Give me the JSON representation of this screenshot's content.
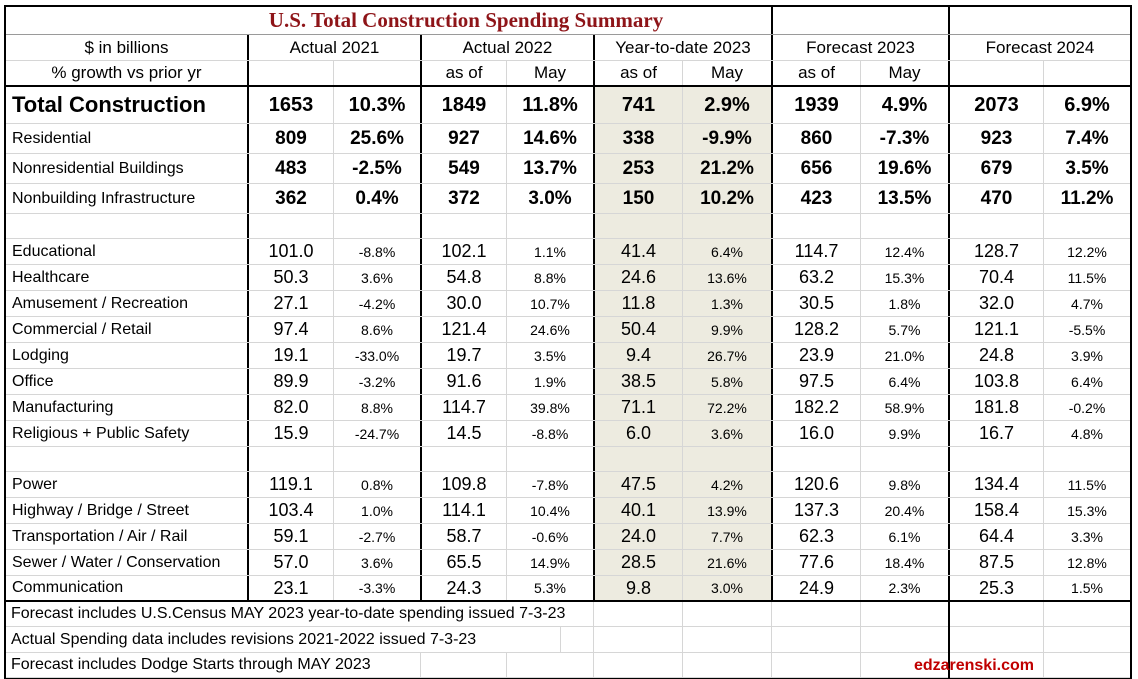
{
  "title": "U.S. Total Construction Spending Summary",
  "watermark": "edzarenski.com",
  "header": {
    "col_label_1": "$ in billions",
    "col_label_2": "% growth vs prior yr",
    "groups": [
      {
        "label": "Actual 2021",
        "sub1": "",
        "sub2": ""
      },
      {
        "label": "Actual 2022",
        "sub1": "as of",
        "sub2": "May"
      },
      {
        "label": "Year-to-date 2023",
        "sub1": "as of",
        "sub2": "May"
      },
      {
        "label": "Forecast 2023",
        "sub1": "as of",
        "sub2": "May"
      },
      {
        "label": "Forecast 2024",
        "sub1": "",
        "sub2": ""
      }
    ]
  },
  "rows": [
    {
      "type": "total",
      "label": "Total Construction",
      "values": [
        "1653",
        "10.3%",
        "1849",
        "11.8%",
        "741",
        "2.9%",
        "1939",
        "4.9%",
        "2073",
        "6.9%"
      ]
    },
    {
      "type": "bold",
      "label": "Residential",
      "values": [
        "809",
        "25.6%",
        "927",
        "14.6%",
        "338",
        "-9.9%",
        "860",
        "-7.3%",
        "923",
        "7.4%"
      ]
    },
    {
      "type": "bold",
      "label": "Nonresidential Buildings",
      "values": [
        "483",
        "-2.5%",
        "549",
        "13.7%",
        "253",
        "21.2%",
        "656",
        "19.6%",
        "679",
        "3.5%"
      ]
    },
    {
      "type": "bold",
      "label": "Nonbuilding Infrastructure",
      "values": [
        "362",
        "0.4%",
        "372",
        "3.0%",
        "150",
        "10.2%",
        "423",
        "13.5%",
        "470",
        "11.2%"
      ]
    },
    {
      "type": "blank",
      "label": "",
      "values": [
        "",
        "",
        "",
        "",
        "",
        "",
        "",
        "",
        "",
        ""
      ]
    },
    {
      "type": "reg",
      "label": "Educational",
      "values": [
        "101.0",
        "-8.8%",
        "102.1",
        "1.1%",
        "41.4",
        "6.4%",
        "114.7",
        "12.4%",
        "128.7",
        "12.2%"
      ]
    },
    {
      "type": "reg",
      "label": "Healthcare",
      "values": [
        "50.3",
        "3.6%",
        "54.8",
        "8.8%",
        "24.6",
        "13.6%",
        "63.2",
        "15.3%",
        "70.4",
        "11.5%"
      ]
    },
    {
      "type": "reg",
      "label": "Amusement / Recreation",
      "values": [
        "27.1",
        "-4.2%",
        "30.0",
        "10.7%",
        "11.8",
        "1.3%",
        "30.5",
        "1.8%",
        "32.0",
        "4.7%"
      ]
    },
    {
      "type": "reg",
      "label": "Commercial / Retail",
      "values": [
        "97.4",
        "8.6%",
        "121.4",
        "24.6%",
        "50.4",
        "9.9%",
        "128.2",
        "5.7%",
        "121.1",
        "-5.5%"
      ]
    },
    {
      "type": "reg",
      "label": "Lodging",
      "values": [
        "19.1",
        "-33.0%",
        "19.7",
        "3.5%",
        "9.4",
        "26.7%",
        "23.9",
        "21.0%",
        "24.8",
        "3.9%"
      ]
    },
    {
      "type": "reg",
      "label": "Office",
      "values": [
        "89.9",
        "-3.2%",
        "91.6",
        "1.9%",
        "38.5",
        "5.8%",
        "97.5",
        "6.4%",
        "103.8",
        "6.4%"
      ]
    },
    {
      "type": "reg",
      "label": "Manufacturing",
      "values": [
        "82.0",
        "8.8%",
        "114.7",
        "39.8%",
        "71.1",
        "72.2%",
        "182.2",
        "58.9%",
        "181.8",
        "-0.2%"
      ]
    },
    {
      "type": "reg",
      "label": "Religious + Public Safety",
      "values": [
        "15.9",
        "-24.7%",
        "14.5",
        "-8.8%",
        "6.0",
        "3.6%",
        "16.0",
        "9.9%",
        "16.7",
        "4.8%"
      ]
    },
    {
      "type": "blank",
      "label": "",
      "values": [
        "",
        "",
        "",
        "",
        "",
        "",
        "",
        "",
        "",
        ""
      ]
    },
    {
      "type": "reg",
      "label": "Power",
      "values": [
        "119.1",
        "0.8%",
        "109.8",
        "-7.8%",
        "47.5",
        "4.2%",
        "120.6",
        "9.8%",
        "134.4",
        "11.5%"
      ]
    },
    {
      "type": "reg",
      "label": "Highway / Bridge / Street",
      "values": [
        "103.4",
        "1.0%",
        "114.1",
        "10.4%",
        "40.1",
        "13.9%",
        "137.3",
        "20.4%",
        "158.4",
        "15.3%"
      ]
    },
    {
      "type": "reg",
      "label": "Transportation / Air / Rail",
      "values": [
        "59.1",
        "-2.7%",
        "58.7",
        "-0.6%",
        "24.0",
        "7.7%",
        "62.3",
        "6.1%",
        "64.4",
        "3.3%"
      ]
    },
    {
      "type": "reg",
      "label": "Sewer / Water / Conservation",
      "values": [
        "57.0",
        "3.6%",
        "65.5",
        "14.9%",
        "28.5",
        "21.6%",
        "77.6",
        "18.4%",
        "87.5",
        "12.8%"
      ]
    },
    {
      "type": "reg",
      "label": "Communication",
      "values": [
        "23.1",
        "-3.3%",
        "24.3",
        "5.3%",
        "9.8",
        "3.0%",
        "24.9",
        "2.3%",
        "25.3",
        "1.5%"
      ]
    }
  ],
  "footnotes": [
    "Forecast includes U.S.Census MAY 2023 year-to-date spending issued 7-3-23",
    "Actual Spending data includes revisions 2021-2022 issued 7-3-23",
    "Forecast includes Dodge Starts through MAY 2023"
  ],
  "colors": {
    "title_red": "#8e1418",
    "watermark_red": "#c00000",
    "highlight_beige": "#edebe0",
    "grid_gray": "#d6d6d6",
    "border_black": "#000000"
  },
  "chart_data": {
    "type": "table",
    "title": "U.S. Total Construction Spending Summary",
    "units": "$ in billions; % growth vs prior yr",
    "column_groups": [
      "Actual 2021",
      "Actual 2022 as of May",
      "Year-to-date 2023 as of May",
      "Forecast 2023 as of May",
      "Forecast 2024"
    ],
    "measures_per_group": [
      "spending_billions",
      "pct_growth_vs_prior_yr"
    ],
    "rows": [
      {
        "category": "Total Construction",
        "values": [
          1653,
          10.3,
          1849,
          11.8,
          741,
          2.9,
          1939,
          4.9,
          2073,
          6.9
        ]
      },
      {
        "category": "Residential",
        "values": [
          809,
          25.6,
          927,
          14.6,
          338,
          -9.9,
          860,
          -7.3,
          923,
          7.4
        ]
      },
      {
        "category": "Nonresidential Buildings",
        "values": [
          483,
          -2.5,
          549,
          13.7,
          253,
          21.2,
          656,
          19.6,
          679,
          3.5
        ]
      },
      {
        "category": "Nonbuilding Infrastructure",
        "values": [
          362,
          0.4,
          372,
          3.0,
          150,
          10.2,
          423,
          13.5,
          470,
          11.2
        ]
      },
      {
        "category": "Educational",
        "values": [
          101.0,
          -8.8,
          102.1,
          1.1,
          41.4,
          6.4,
          114.7,
          12.4,
          128.7,
          12.2
        ]
      },
      {
        "category": "Healthcare",
        "values": [
          50.3,
          3.6,
          54.8,
          8.8,
          24.6,
          13.6,
          63.2,
          15.3,
          70.4,
          11.5
        ]
      },
      {
        "category": "Amusement / Recreation",
        "values": [
          27.1,
          -4.2,
          30.0,
          10.7,
          11.8,
          1.3,
          30.5,
          1.8,
          32.0,
          4.7
        ]
      },
      {
        "category": "Commercial / Retail",
        "values": [
          97.4,
          8.6,
          121.4,
          24.6,
          50.4,
          9.9,
          128.2,
          5.7,
          121.1,
          -5.5
        ]
      },
      {
        "category": "Lodging",
        "values": [
          19.1,
          -33.0,
          19.7,
          3.5,
          9.4,
          26.7,
          23.9,
          21.0,
          24.8,
          3.9
        ]
      },
      {
        "category": "Office",
        "values": [
          89.9,
          -3.2,
          91.6,
          1.9,
          38.5,
          5.8,
          97.5,
          6.4,
          103.8,
          6.4
        ]
      },
      {
        "category": "Manufacturing",
        "values": [
          82.0,
          8.8,
          114.7,
          39.8,
          71.1,
          72.2,
          182.2,
          58.9,
          181.8,
          -0.2
        ]
      },
      {
        "category": "Religious + Public Safety",
        "values": [
          15.9,
          -24.7,
          14.5,
          -8.8,
          6.0,
          3.6,
          16.0,
          9.9,
          16.7,
          4.8
        ]
      },
      {
        "category": "Power",
        "values": [
          119.1,
          0.8,
          109.8,
          -7.8,
          47.5,
          4.2,
          120.6,
          9.8,
          134.4,
          11.5
        ]
      },
      {
        "category": "Highway / Bridge / Street",
        "values": [
          103.4,
          1.0,
          114.1,
          10.4,
          40.1,
          13.9,
          137.3,
          20.4,
          158.4,
          15.3
        ]
      },
      {
        "category": "Transportation / Air / Rail",
        "values": [
          59.1,
          -2.7,
          58.7,
          -0.6,
          24.0,
          7.7,
          62.3,
          6.1,
          64.4,
          3.3
        ]
      },
      {
        "category": "Sewer / Water / Conservation",
        "values": [
          57.0,
          3.6,
          65.5,
          14.9,
          28.5,
          21.6,
          77.6,
          18.4,
          87.5,
          12.8
        ]
      },
      {
        "category": "Communication",
        "values": [
          23.1,
          -3.3,
          24.3,
          5.3,
          9.8,
          3.0,
          24.9,
          2.3,
          25.3,
          1.5
        ]
      }
    ]
  }
}
